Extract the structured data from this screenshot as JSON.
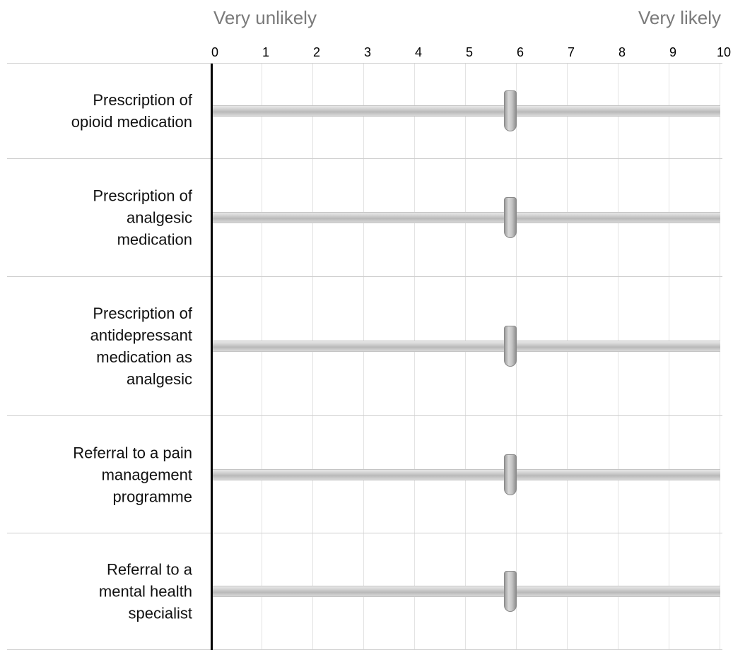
{
  "scale": {
    "left_anchor": "Very unlikely",
    "right_anchor": "Very likely",
    "min": 0,
    "max": 10,
    "ticks": [
      "0",
      "1",
      "2",
      "3",
      "4",
      "5",
      "6",
      "7",
      "8",
      "9",
      "10"
    ]
  },
  "items": [
    {
      "label_lines": [
        "Prescription of",
        "opioid medication"
      ],
      "value": 5
    },
    {
      "label_lines": [
        "Prescription of",
        "analgesic",
        "medication"
      ],
      "value": 5
    },
    {
      "label_lines": [
        "Prescription of",
        "antidepressant",
        "medication as",
        "analgesic"
      ],
      "value": 5
    },
    {
      "label_lines": [
        "Referral to a pain",
        "management",
        "programme"
      ],
      "value": 5
    },
    {
      "label_lines": [
        "Referral to a",
        "mental health",
        "specialist"
      ],
      "value": 5
    }
  ],
  "colors": {
    "anchor_text": "#7a7a7a",
    "axis": "#000000",
    "gridline": "#e3e3e3"
  }
}
